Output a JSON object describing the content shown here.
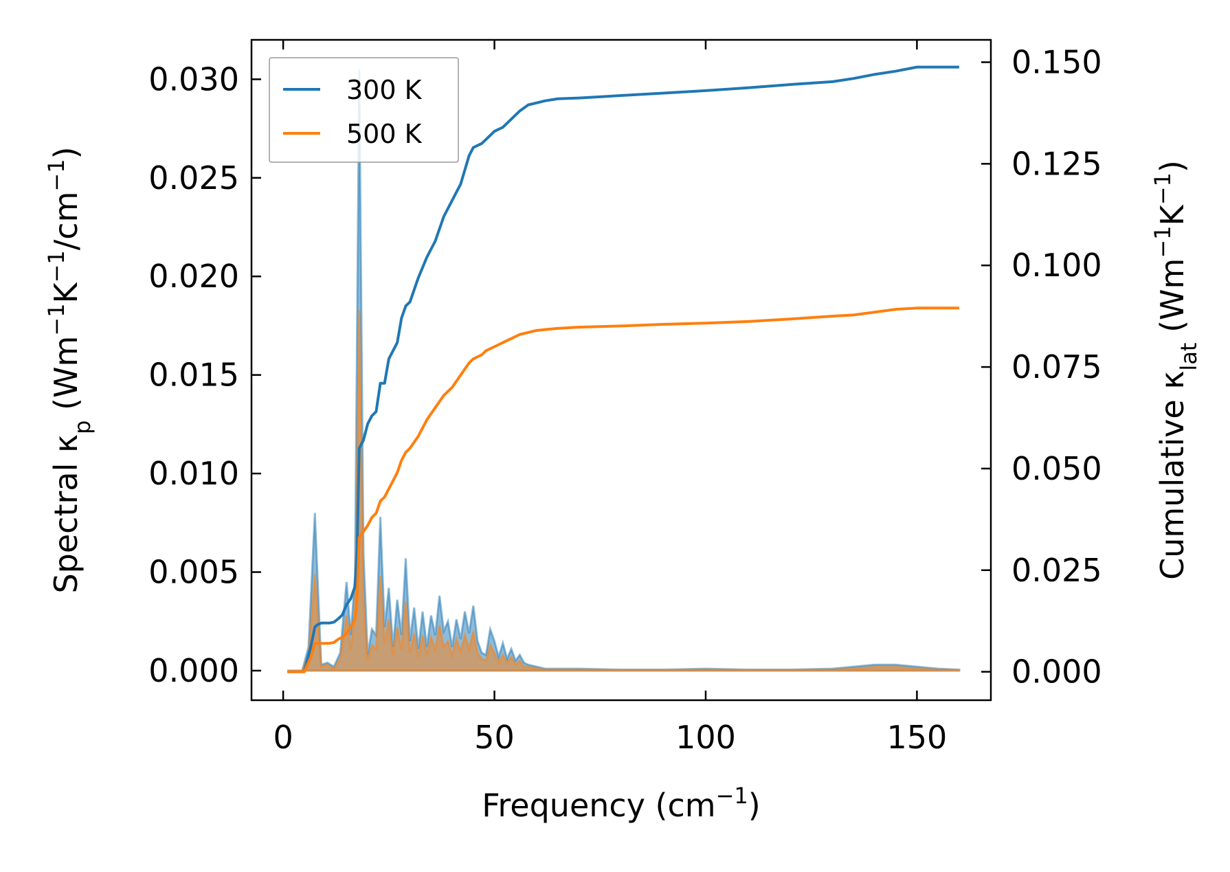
{
  "colors": {
    "series_300": "#1f77b4",
    "series_500": "#ff7f0e",
    "axes": "#000000",
    "background": "#ffffff"
  },
  "chart_data": {
    "type": "line",
    "xlabel": {
      "prefix": "Frequency (cm",
      "sup": "−1",
      "suffix": ")"
    },
    "ylabel_left": {
      "parts": [
        {
          "t": "Spectral κ",
          "s": "n"
        },
        {
          "t": "p",
          "s": "sub"
        },
        {
          "t": " (Wm",
          "s": "n"
        },
        {
          "t": "−1",
          "s": "sup"
        },
        {
          "t": "K",
          "s": "n"
        },
        {
          "t": "−1",
          "s": "sup"
        },
        {
          "t": "/cm",
          "s": "n"
        },
        {
          "t": "−1",
          "s": "sup"
        },
        {
          "t": ")",
          "s": "n"
        }
      ]
    },
    "ylabel_right": {
      "parts": [
        {
          "t": "Cumulative κ",
          "s": "n"
        },
        {
          "t": "lat",
          "s": "sub"
        },
        {
          "t": " (Wm",
          "s": "n"
        },
        {
          "t": "−1",
          "s": "sup"
        },
        {
          "t": "K",
          "s": "n"
        },
        {
          "t": "−1",
          "s": "sup"
        },
        {
          "t": ")",
          "s": "n"
        }
      ]
    },
    "xlim": [
      -7.5,
      167.5
    ],
    "ylim_left": [
      -0.0015,
      0.032
    ],
    "ylim_right": [
      -0.007,
      0.1555
    ],
    "xticks": [
      0,
      50,
      100,
      150
    ],
    "xtick_labels": [
      "0",
      "50",
      "100",
      "150"
    ],
    "yticks_left": [
      0.0,
      0.005,
      0.01,
      0.015,
      0.02,
      0.025,
      0.03
    ],
    "ytick_labels_left": [
      "0.000",
      "0.005",
      "0.010",
      "0.015",
      "0.020",
      "0.025",
      "0.030"
    ],
    "yticks_right": [
      0.0,
      0.025,
      0.05,
      0.075,
      0.1,
      0.125,
      0.15
    ],
    "ytick_labels_right": [
      "0.000",
      "0.025",
      "0.050",
      "0.075",
      "0.100",
      "0.125",
      "0.150"
    ],
    "legend": {
      "placement": "upper-left",
      "entries": [
        "300 K",
        "500 K"
      ]
    },
    "grid": false,
    "spectral_series": [
      {
        "name": "300 K",
        "x": [
          1,
          4.5,
          6,
          7.5,
          9,
          10.5,
          12,
          13.5,
          15,
          16,
          17,
          18,
          19,
          20,
          21,
          22,
          23,
          24,
          25,
          26,
          27,
          28,
          29,
          30,
          31,
          32,
          33,
          34,
          35,
          36,
          37,
          38,
          39,
          40,
          41,
          42,
          43,
          44,
          45,
          46,
          47,
          48,
          49,
          50,
          51,
          52,
          53,
          54,
          55,
          56,
          57,
          58,
          60,
          62,
          65,
          70,
          80,
          90,
          100,
          110,
          120,
          130,
          135,
          140,
          145,
          150,
          155,
          160
        ],
        "y": [
          0,
          0,
          0.0012,
          0.008,
          0.0003,
          0.0004,
          0.0002,
          0.0009,
          0.0045,
          0.0018,
          0.0048,
          0.0305,
          0.006,
          0.0008,
          0.0021,
          0.0018,
          0.0078,
          0.0022,
          0.0042,
          0.0012,
          0.0036,
          0.0018,
          0.0057,
          0.0015,
          0.0032,
          0.0011,
          0.003,
          0.0012,
          0.0028,
          0.0018,
          0.0038,
          0.002,
          0.0025,
          0.0012,
          0.0026,
          0.0016,
          0.003,
          0.0019,
          0.0033,
          0.0015,
          0.0009,
          0.0008,
          0.0021,
          0.0015,
          0.0007,
          0.0014,
          0.0006,
          0.0011,
          0.0005,
          0.0008,
          0.0004,
          0.0003,
          0.0002,
          0.0001,
          0.0001,
          0.0001,
          5e-05,
          5e-05,
          0.0001,
          5e-05,
          5e-05,
          0.0001,
          0.0002,
          0.0003,
          0.0003,
          0.0002,
          0.0001,
          5e-05
        ]
      },
      {
        "name": "500 K",
        "x": [
          1,
          4.5,
          6,
          7.5,
          9,
          10.5,
          12,
          13.5,
          15,
          16,
          17,
          18,
          19,
          20,
          21,
          22,
          23,
          24,
          25,
          26,
          27,
          28,
          29,
          30,
          31,
          32,
          33,
          34,
          35,
          36,
          37,
          38,
          39,
          40,
          41,
          42,
          43,
          44,
          45,
          46,
          47,
          48,
          49,
          50,
          51,
          52,
          53,
          54,
          55,
          56,
          57,
          58,
          60,
          62,
          65,
          70,
          80,
          90,
          100,
          110,
          120,
          130,
          135,
          140,
          145,
          150,
          155,
          160
        ],
        "y": [
          0,
          0,
          0.0008,
          0.0049,
          0.0002,
          0.0003,
          0.0001,
          0.0006,
          0.0028,
          0.0011,
          0.0029,
          0.0183,
          0.0036,
          0.0005,
          0.0013,
          0.0011,
          0.0048,
          0.0014,
          0.0026,
          0.0008,
          0.0022,
          0.0011,
          0.0035,
          0.0009,
          0.0019,
          0.0007,
          0.0018,
          0.0008,
          0.0017,
          0.0011,
          0.0023,
          0.0012,
          0.0015,
          0.0008,
          0.0016,
          0.001,
          0.0018,
          0.0011,
          0.002,
          0.0009,
          0.0006,
          0.0005,
          0.0013,
          0.0009,
          0.0004,
          0.0008,
          0.0004,
          0.0007,
          0.0003,
          0.0005,
          0.0002,
          0.0002,
          0.0001,
          5e-05,
          5e-05,
          5e-05,
          3e-05,
          3e-05,
          5e-05,
          3e-05,
          3e-05,
          5e-05,
          0.0001,
          0.0002,
          0.0002,
          0.0001,
          5e-05,
          3e-05
        ]
      }
    ],
    "cumulative_series": [
      {
        "name": "300 K",
        "x": [
          1,
          5,
          6.5,
          7.5,
          8,
          9,
          10,
          11,
          12,
          13,
          14,
          15,
          16,
          17,
          17.5,
          18,
          18.5,
          19,
          20,
          21,
          22,
          23,
          24,
          25,
          26,
          27,
          28,
          29,
          30,
          32,
          34,
          36,
          38,
          40,
          42,
          44,
          45,
          47,
          48,
          50,
          52,
          54,
          56,
          58,
          60,
          62,
          65,
          70,
          80,
          90,
          100,
          110,
          120,
          130,
          135,
          140,
          145,
          150,
          155,
          160
        ],
        "y": [
          0,
          0,
          0.006,
          0.011,
          0.0115,
          0.012,
          0.012,
          0.012,
          0.0122,
          0.013,
          0.014,
          0.0165,
          0.018,
          0.021,
          0.03,
          0.055,
          0.056,
          0.057,
          0.061,
          0.063,
          0.064,
          0.071,
          0.071,
          0.077,
          0.079,
          0.081,
          0.087,
          0.09,
          0.091,
          0.097,
          0.102,
          0.106,
          0.112,
          0.116,
          0.12,
          0.127,
          0.129,
          0.13,
          0.131,
          0.133,
          0.134,
          0.136,
          0.138,
          0.1395,
          0.14,
          0.1405,
          0.141,
          0.1412,
          0.1418,
          0.1424,
          0.143,
          0.1437,
          0.1445,
          0.1452,
          0.146,
          0.147,
          0.1478,
          0.1488,
          0.1488,
          0.1488
        ]
      },
      {
        "name": "500 K",
        "x": [
          1,
          5,
          6.5,
          7.5,
          8,
          9,
          10,
          11,
          12,
          13,
          14,
          15,
          16,
          17,
          17.5,
          18,
          18.5,
          19,
          20,
          21,
          22,
          23,
          24,
          25,
          26,
          27,
          28,
          29,
          30,
          32,
          34,
          36,
          38,
          40,
          42,
          44,
          45,
          47,
          48,
          50,
          52,
          54,
          56,
          58,
          60,
          62,
          65,
          70,
          80,
          90,
          100,
          110,
          120,
          130,
          135,
          140,
          145,
          150,
          155,
          160
        ],
        "y": [
          0,
          0,
          0.0035,
          0.007,
          0.007,
          0.007,
          0.007,
          0.007,
          0.0072,
          0.008,
          0.0085,
          0.0095,
          0.011,
          0.013,
          0.018,
          0.033,
          0.034,
          0.0345,
          0.036,
          0.038,
          0.039,
          0.042,
          0.043,
          0.045,
          0.047,
          0.049,
          0.052,
          0.054,
          0.055,
          0.058,
          0.062,
          0.065,
          0.068,
          0.07,
          0.073,
          0.076,
          0.077,
          0.078,
          0.079,
          0.08,
          0.081,
          0.082,
          0.083,
          0.0835,
          0.084,
          0.0842,
          0.0845,
          0.0848,
          0.0851,
          0.0855,
          0.0858,
          0.0862,
          0.0868,
          0.0875,
          0.0878,
          0.0885,
          0.0892,
          0.0895,
          0.0895,
          0.0895
        ]
      }
    ]
  }
}
